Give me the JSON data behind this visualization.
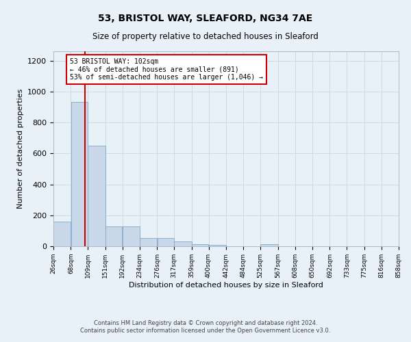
{
  "title": "53, BRISTOL WAY, SLEAFORD, NG34 7AE",
  "subtitle": "Size of property relative to detached houses in Sleaford",
  "xlabel": "Distribution of detached houses by size in Sleaford",
  "ylabel": "Number of detached properties",
  "footer_line1": "Contains HM Land Registry data © Crown copyright and database right 2024.",
  "footer_line2": "Contains public sector information licensed under the Open Government Licence v3.0.",
  "bar_left_edges": [
    26,
    68,
    109,
    151,
    192,
    234,
    276,
    317,
    359,
    400,
    442,
    484,
    525,
    567,
    608,
    650,
    692,
    733,
    775,
    816
  ],
  "bar_widths": [
    42,
    41,
    42,
    41,
    42,
    42,
    41,
    42,
    41,
    42,
    42,
    41,
    42,
    41,
    42,
    42,
    41,
    42,
    41,
    42
  ],
  "bar_heights": [
    160,
    935,
    650,
    130,
    130,
    55,
    55,
    30,
    15,
    10,
    0,
    0,
    15,
    0,
    0,
    0,
    0,
    0,
    0,
    0
  ],
  "bar_color": "#c8d8e8",
  "bar_edgecolor": "#7aaac8",
  "x_tick_labels": [
    "26sqm",
    "68sqm",
    "109sqm",
    "151sqm",
    "192sqm",
    "234sqm",
    "276sqm",
    "317sqm",
    "359sqm",
    "400sqm",
    "442sqm",
    "484sqm",
    "525sqm",
    "567sqm",
    "608sqm",
    "650sqm",
    "692sqm",
    "733sqm",
    "775sqm",
    "816sqm",
    "858sqm"
  ],
  "ylim": [
    0,
    1260
  ],
  "yticks": [
    0,
    200,
    400,
    600,
    800,
    1000,
    1200
  ],
  "property_size": 102,
  "red_line_color": "#cc0000",
  "annotation_text": "53 BRISTOL WAY: 102sqm\n← 46% of detached houses are smaller (891)\n53% of semi-detached houses are larger (1,046) →",
  "annotation_box_color": "#ffffff",
  "annotation_box_edgecolor": "#cc0000",
  "grid_color": "#d0d8e0",
  "bg_color": "#e8f0f8"
}
